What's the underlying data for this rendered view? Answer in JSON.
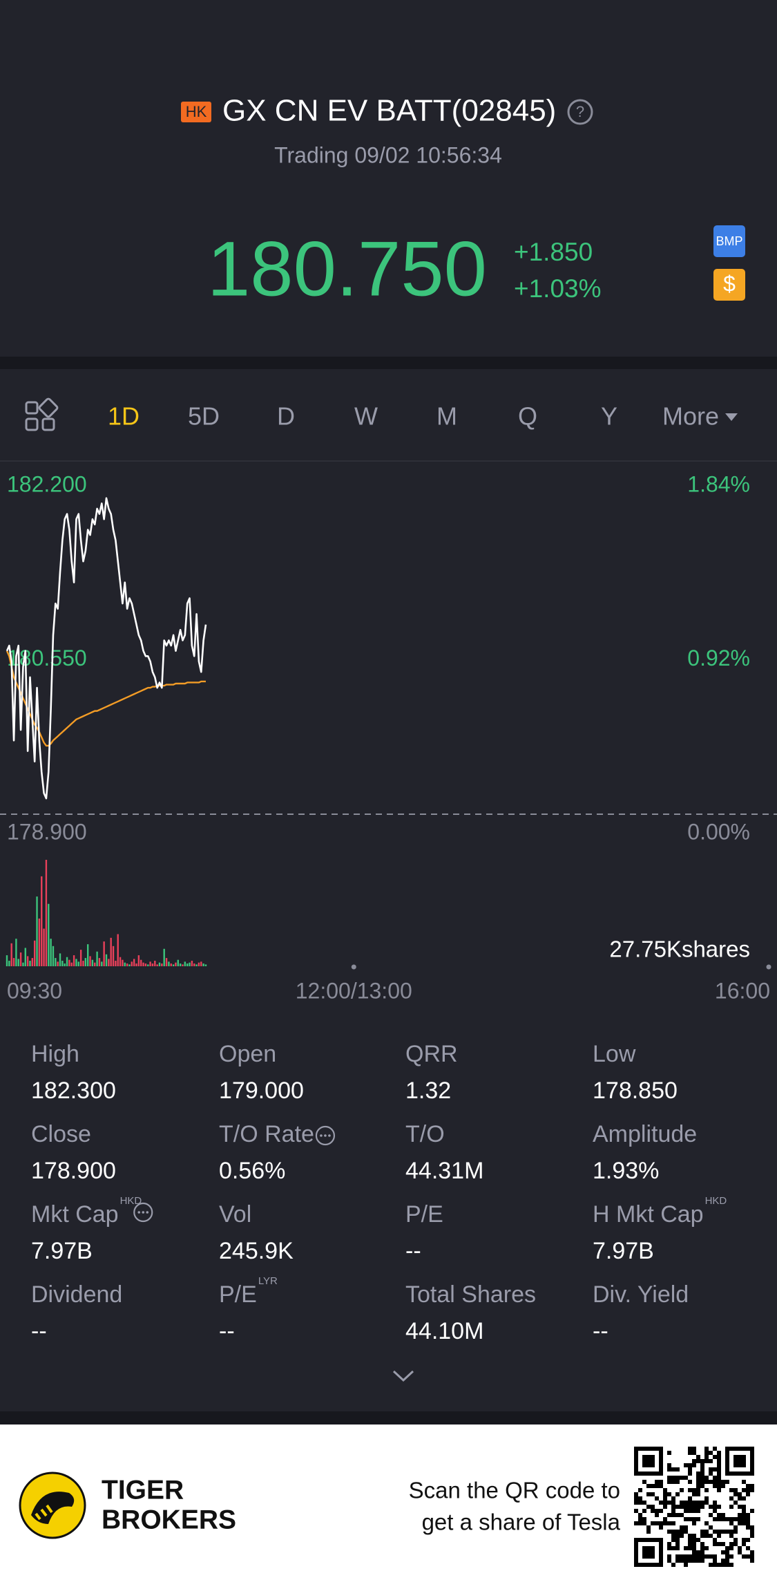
{
  "header": {
    "badge": "HK",
    "title": "GX CN EV BATT(02845)",
    "status": "Trading 09/02 10:56:34"
  },
  "quote": {
    "price": "180.750",
    "change": "+1.850",
    "change_pct": "+1.03%",
    "color": "#3cc47c"
  },
  "badges": [
    "BMP",
    "$"
  ],
  "tabs": [
    "1D",
    "5D",
    "D",
    "W",
    "M",
    "Q",
    "Y",
    "More"
  ],
  "active_tab": 0,
  "chart_data": {
    "type": "line",
    "xlim": [
      0,
      330
    ],
    "xticks": [
      {
        "value": 0,
        "label": "09:30"
      },
      {
        "value": 150,
        "label": "12:00/13:00"
      },
      {
        "value": 330,
        "label": "16:00"
      }
    ],
    "ylim": [
      178.9,
      182.2
    ],
    "yticks": [
      {
        "value": 182.2,
        "label": "182.200"
      },
      {
        "value": 180.55,
        "label": "180.550"
      },
      {
        "value": 178.9,
        "label": "178.900"
      }
    ],
    "y2lim": [
      0,
      1.84
    ],
    "y2ticks": [
      {
        "value": 1.84,
        "label": "1.84%"
      },
      {
        "value": 0.92,
        "label": "0.92%"
      },
      {
        "value": 0,
        "label": "0.00%"
      }
    ],
    "series": [
      {
        "color": "#ffffff",
        "values": [
          180.45,
          180.5,
          180.35,
          179.6,
          180.4,
          180.5,
          179.7,
          180.3,
          180.45,
          179.5,
          180.2,
          179.8,
          179.4,
          180.1,
          179.6,
          179.3,
          179.1,
          179.05,
          179.3,
          179.9,
          180.6,
          180.9,
          180.85,
          181.2,
          181.5,
          181.7,
          181.75,
          181.6,
          181.3,
          181.1,
          181.7,
          181.75,
          181.5,
          181.3,
          181.4,
          181.6,
          181.55,
          181.7,
          181.65,
          181.8,
          181.75,
          181.85,
          181.7,
          181.9,
          181.8,
          181.75,
          181.6,
          181.5,
          181.3,
          181.1,
          180.9,
          181.1,
          180.85,
          180.95,
          180.9,
          180.8,
          180.7,
          180.6,
          180.55,
          180.45,
          180.4,
          180.4,
          180.35,
          180.25,
          180.2,
          180.1,
          180.15,
          180.1,
          180.55,
          180.5,
          180.55,
          180.5,
          180.6,
          180.45,
          180.55,
          180.65,
          180.55,
          180.6,
          180.9,
          180.95,
          180.5,
          180.4,
          180.8,
          180.35,
          180.25,
          180.55,
          180.7
        ]
      },
      {
        "color": "#f39c26",
        "values": [
          180.45,
          180.4,
          180.3,
          180.2,
          180.15,
          180.1,
          180.05,
          180.0,
          179.95,
          179.9,
          179.85,
          179.8,
          179.75,
          179.72,
          179.68,
          179.63,
          179.58,
          179.55,
          179.55,
          179.57,
          179.6,
          179.62,
          179.64,
          179.66,
          179.68,
          179.7,
          179.72,
          179.74,
          179.76,
          179.78,
          179.8,
          179.81,
          179.82,
          179.83,
          179.84,
          179.85,
          179.86,
          179.87,
          179.88,
          179.88,
          179.89,
          179.9,
          179.91,
          179.92,
          179.93,
          179.94,
          179.95,
          179.96,
          179.97,
          179.98,
          179.99,
          180.0,
          180.01,
          180.02,
          180.03,
          180.04,
          180.05,
          180.06,
          180.07,
          180.08,
          180.09,
          180.1,
          180.1,
          180.11,
          180.11,
          180.12,
          180.12,
          180.12,
          180.12,
          180.13,
          180.13,
          180.13,
          180.13,
          180.14,
          180.14,
          180.14,
          180.14,
          180.14,
          180.15,
          180.15,
          180.15,
          180.15,
          180.15,
          180.15,
          180.16,
          180.16,
          180.16
        ]
      }
    ],
    "volume": {
      "label": "27.75Kshares",
      "up_color": "#3cc47c",
      "down_color": "#e8405a",
      "values": [
        1200,
        600,
        2500,
        900,
        3000,
        800,
        1500,
        400,
        2000,
        1100,
        600,
        900,
        2800,
        7600,
        5200,
        9800,
        4100,
        11600,
        6800,
        3000,
        2200,
        900,
        500,
        1400,
        600,
        300,
        1000,
        700,
        400,
        1200,
        800,
        500,
        1800,
        600,
        900,
        2400,
        1100,
        700,
        400,
        1600,
        900,
        500,
        2700,
        1300,
        800,
        3100,
        2200,
        600,
        3500,
        1000,
        700,
        400,
        300,
        200,
        500,
        800,
        300,
        1200,
        700,
        400,
        300,
        200,
        500,
        300,
        600,
        200,
        400,
        300,
        1900,
        900,
        500,
        300,
        200,
        400,
        700,
        300,
        200,
        500,
        300,
        400,
        600,
        300,
        200,
        400,
        500,
        300,
        200
      ]
    }
  },
  "stats": [
    {
      "label": "High",
      "value": "182.300"
    },
    {
      "label": "Open",
      "value": "179.000"
    },
    {
      "label": "QRR",
      "value": "1.32"
    },
    {
      "label": "Low",
      "value": "178.850"
    },
    {
      "label": "Close",
      "value": "178.900"
    },
    {
      "label": "T/O Rate",
      "value": "0.56%"
    },
    {
      "label": "T/O",
      "value": "44.31M"
    },
    {
      "label": "Amplitude",
      "value": "1.93%"
    },
    {
      "label": "Mkt Cap",
      "value": "7.97B",
      "sup": "HKD"
    },
    {
      "label": "Vol",
      "value": "245.9K"
    },
    {
      "label": "P/E",
      "value": "--"
    },
    {
      "label": "H Mkt Cap",
      "value": "7.97B",
      "sup": "HKD"
    },
    {
      "label": "Dividend",
      "value": "--"
    },
    {
      "label": "P/E",
      "value": "--",
      "sup": "LYR"
    },
    {
      "label": "Total Shares",
      "value": "44.10M"
    },
    {
      "label": "Div. Yield",
      "value": "--"
    }
  ],
  "footer": {
    "brand": [
      "TIGER",
      "BROKERS"
    ],
    "promo": [
      "Scan the QR code to",
      "get a share of Tesla"
    ]
  }
}
